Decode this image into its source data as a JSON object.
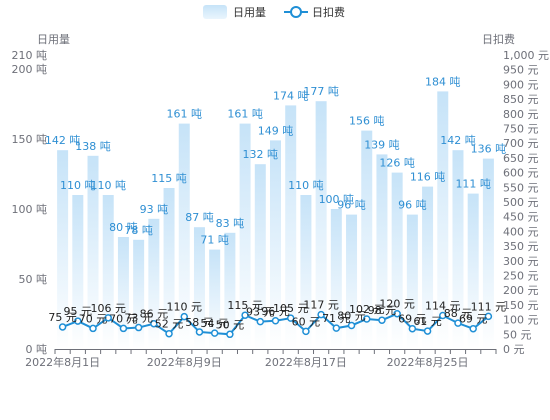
{
  "chart_data": {
    "type": "bar",
    "legend": {
      "placement": "top-center",
      "items": [
        {
          "name": "日用量",
          "kind": "bar"
        },
        {
          "name": "日扣费",
          "kind": "line"
        }
      ]
    },
    "left_axis": {
      "title": "日用量",
      "range": [
        0,
        210
      ],
      "ticks": [
        {
          "value": 0,
          "label": "0 吨"
        },
        {
          "value": 50,
          "label": "50 吨"
        },
        {
          "value": 100,
          "label": "100 吨"
        },
        {
          "value": 150,
          "label": "150 吨"
        },
        {
          "value": 200,
          "label": "200 吨"
        },
        {
          "value": 210,
          "label": "210 吨"
        }
      ]
    },
    "right_axis": {
      "title": "日扣费",
      "range": [
        0,
        1000
      ],
      "ticks": [
        {
          "value": 0,
          "label": "0 元"
        },
        {
          "value": 50,
          "label": "50 元"
        },
        {
          "value": 100,
          "label": "100 元"
        },
        {
          "value": 150,
          "label": "150 元"
        },
        {
          "value": 200,
          "label": "200 元"
        },
        {
          "value": 250,
          "label": "250 元"
        },
        {
          "value": 300,
          "label": "300 元"
        },
        {
          "value": 350,
          "label": "350 元"
        },
        {
          "value": 400,
          "label": "400 元"
        },
        {
          "value": 450,
          "label": "450 元"
        },
        {
          "value": 500,
          "label": "500 元"
        },
        {
          "value": 550,
          "label": "550 元"
        },
        {
          "value": 600,
          "label": "600 元"
        },
        {
          "value": 650,
          "label": "650 元"
        },
        {
          "value": 700,
          "label": "700 元"
        },
        {
          "value": 750,
          "label": "750 元"
        },
        {
          "value": 800,
          "label": "800 元"
        },
        {
          "value": 850,
          "label": "850 元"
        },
        {
          "value": 900,
          "label": "900 元"
        },
        {
          "value": 950,
          "label": "950 元"
        },
        {
          "value": 1000,
          "label": "1,000 元"
        }
      ]
    },
    "x_axis_labels": [
      {
        "index": 0,
        "label": "2022年8月1日"
      },
      {
        "index": 8,
        "label": "2022年8月9日"
      },
      {
        "index": 16,
        "label": "2022年8月17日"
      },
      {
        "index": 24,
        "label": "2022年8月25日"
      }
    ],
    "x": [
      "2022-08-01",
      "2022-08-02",
      "2022-08-03",
      "2022-08-04",
      "2022-08-05",
      "2022-08-06",
      "2022-08-07",
      "2022-08-08",
      "2022-08-09",
      "2022-08-10",
      "2022-08-11",
      "2022-08-12",
      "2022-08-13",
      "2022-08-14",
      "2022-08-15",
      "2022-08-16",
      "2022-08-17",
      "2022-08-18",
      "2022-08-19",
      "2022-08-20",
      "2022-08-21",
      "2022-08-22",
      "2022-08-23",
      "2022-08-24",
      "2022-08-25",
      "2022-08-26",
      "2022-08-27",
      "2022-08-28",
      "2022-08-29"
    ],
    "series": [
      {
        "name": "日用量",
        "type": "bar",
        "axis": "left",
        "unit_suffix": " 吨",
        "values": [
          142,
          110,
          138,
          110,
          80,
          78,
          93,
          115,
          161,
          87,
          71,
          83,
          161,
          132,
          149,
          174,
          110,
          177,
          100,
          96,
          156,
          139,
          126,
          96,
          116,
          184,
          142,
          111,
          136
        ]
      },
      {
        "name": "日扣费",
        "type": "line",
        "axis": "right",
        "unit_suffix": " 元",
        "values": [
          75,
          95,
          70,
          106,
          70,
          73,
          86,
          52,
          110,
          58,
          54,
          50,
          115,
          93,
          96,
          105,
          60,
          117,
          71,
          80,
          102,
          98,
          120,
          69,
          61,
          114,
          88,
          69,
          111
        ]
      }
    ],
    "colors": {
      "bar_top": "#c6e3f8",
      "bar_bottom": "#ffffff",
      "line": "#1f8fd6",
      "axis": "#6e7079",
      "grid": "#eeeeee"
    }
  }
}
